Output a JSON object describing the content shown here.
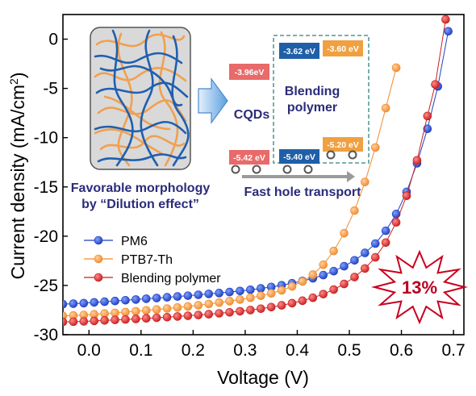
{
  "chart_data": {
    "type": "scatter",
    "xlabel": "Voltage (V)",
    "ylabel_main": "Current density (mA/cm",
    "ylabel_sup": "2",
    "ylabel_tail": ")",
    "xlim": [
      -0.05,
      0.72
    ],
    "ylim": [
      -30,
      2.5
    ],
    "xticks": [
      0.0,
      0.1,
      0.2,
      0.3,
      0.4,
      0.5,
      0.6,
      0.7
    ],
    "yticks": [
      0,
      -5,
      -10,
      -15,
      -20,
      -25,
      -30
    ],
    "legend_position": "left-middle",
    "series": [
      {
        "name": "PM6",
        "color": "#1f3fbf",
        "points": [
          [
            -0.05,
            -26.9
          ],
          [
            -0.03,
            -26.85
          ],
          [
            -0.01,
            -26.8
          ],
          [
            0.01,
            -26.72
          ],
          [
            0.03,
            -26.65
          ],
          [
            0.05,
            -26.58
          ],
          [
            0.07,
            -26.5
          ],
          [
            0.09,
            -26.43
          ],
          [
            0.11,
            -26.35
          ],
          [
            0.13,
            -26.28
          ],
          [
            0.15,
            -26.2
          ],
          [
            0.17,
            -26.12
          ],
          [
            0.19,
            -26.04
          ],
          [
            0.21,
            -25.95
          ],
          [
            0.23,
            -25.86
          ],
          [
            0.25,
            -25.77
          ],
          [
            0.27,
            -25.67
          ],
          [
            0.29,
            -25.56
          ],
          [
            0.31,
            -25.44
          ],
          [
            0.33,
            -25.3
          ],
          [
            0.35,
            -25.15
          ],
          [
            0.37,
            -24.98
          ],
          [
            0.39,
            -24.78
          ],
          [
            0.41,
            -24.55
          ],
          [
            0.43,
            -24.28
          ],
          [
            0.45,
            -23.95
          ],
          [
            0.47,
            -23.55
          ],
          [
            0.49,
            -23.05
          ],
          [
            0.51,
            -22.45
          ],
          [
            0.53,
            -21.7
          ],
          [
            0.55,
            -20.75
          ],
          [
            0.57,
            -19.45
          ],
          [
            0.59,
            -17.75
          ],
          [
            0.61,
            -15.5
          ],
          [
            0.63,
            -12.6
          ],
          [
            0.65,
            -9.1
          ],
          [
            0.67,
            -4.8
          ],
          [
            0.69,
            0.8
          ]
        ]
      },
      {
        "name": "PTB7-Th",
        "color": "#f08a2c",
        "points": [
          [
            -0.05,
            -28.1
          ],
          [
            -0.03,
            -28.05
          ],
          [
            -0.01,
            -28.0
          ],
          [
            0.01,
            -27.93
          ],
          [
            0.03,
            -27.85
          ],
          [
            0.05,
            -27.78
          ],
          [
            0.07,
            -27.7
          ],
          [
            0.09,
            -27.62
          ],
          [
            0.11,
            -27.53
          ],
          [
            0.13,
            -27.44
          ],
          [
            0.15,
            -27.34
          ],
          [
            0.17,
            -27.24
          ],
          [
            0.19,
            -27.13
          ],
          [
            0.21,
            -27.01
          ],
          [
            0.23,
            -26.88
          ],
          [
            0.25,
            -26.74
          ],
          [
            0.27,
            -26.59
          ],
          [
            0.29,
            -26.43
          ],
          [
            0.31,
            -26.25
          ],
          [
            0.33,
            -26.05
          ],
          [
            0.35,
            -25.8
          ],
          [
            0.37,
            -25.5
          ],
          [
            0.39,
            -25.1
          ],
          [
            0.41,
            -24.6
          ],
          [
            0.43,
            -23.9
          ],
          [
            0.45,
            -22.9
          ],
          [
            0.47,
            -21.5
          ],
          [
            0.49,
            -19.7
          ],
          [
            0.51,
            -17.4
          ],
          [
            0.53,
            -14.5
          ],
          [
            0.55,
            -11.0
          ],
          [
            0.57,
            -7.0
          ],
          [
            0.59,
            -2.9
          ]
        ]
      },
      {
        "name": "Blending polymer",
        "color": "#c81e1e",
        "points": [
          [
            -0.05,
            -28.7
          ],
          [
            -0.03,
            -28.68
          ],
          [
            -0.01,
            -28.65
          ],
          [
            0.01,
            -28.6
          ],
          [
            0.03,
            -28.55
          ],
          [
            0.05,
            -28.5
          ],
          [
            0.07,
            -28.45
          ],
          [
            0.09,
            -28.4
          ],
          [
            0.11,
            -28.34
          ],
          [
            0.13,
            -28.28
          ],
          [
            0.15,
            -28.22
          ],
          [
            0.17,
            -28.15
          ],
          [
            0.19,
            -28.08
          ],
          [
            0.21,
            -28.0
          ],
          [
            0.23,
            -27.92
          ],
          [
            0.25,
            -27.83
          ],
          [
            0.27,
            -27.73
          ],
          [
            0.29,
            -27.62
          ],
          [
            0.31,
            -27.5
          ],
          [
            0.33,
            -27.36
          ],
          [
            0.35,
            -27.2
          ],
          [
            0.37,
            -27.02
          ],
          [
            0.39,
            -26.8
          ],
          [
            0.41,
            -26.55
          ],
          [
            0.43,
            -26.25
          ],
          [
            0.45,
            -25.88
          ],
          [
            0.47,
            -25.42
          ],
          [
            0.49,
            -24.85
          ],
          [
            0.51,
            -24.15
          ],
          [
            0.53,
            -23.28
          ],
          [
            0.55,
            -22.15
          ],
          [
            0.57,
            -20.65
          ],
          [
            0.59,
            -18.6
          ],
          [
            0.61,
            -15.9
          ],
          [
            0.63,
            -12.3
          ],
          [
            0.65,
            -7.8
          ],
          [
            0.665,
            -4.6
          ],
          [
            0.685,
            2.0
          ]
        ]
      }
    ],
    "inset": {
      "captions": [
        "Favorable morphology",
        "by “Dilution effect”"
      ],
      "cqd_label": "CQDs",
      "blend_label": [
        "Blending",
        "polymer"
      ],
      "transport_label": "Fast hole transport",
      "energy_levels": {
        "cqd_lumo": "-3.96eV",
        "cqd_homo": "-5.42 eV",
        "pm6_lumo": "-3.62 eV",
        "pm6_homo": "-5.40 eV",
        "ptb_lumo": "-3.60 eV",
        "ptb_homo": "-5.20 eV"
      }
    },
    "badge": "13%"
  }
}
